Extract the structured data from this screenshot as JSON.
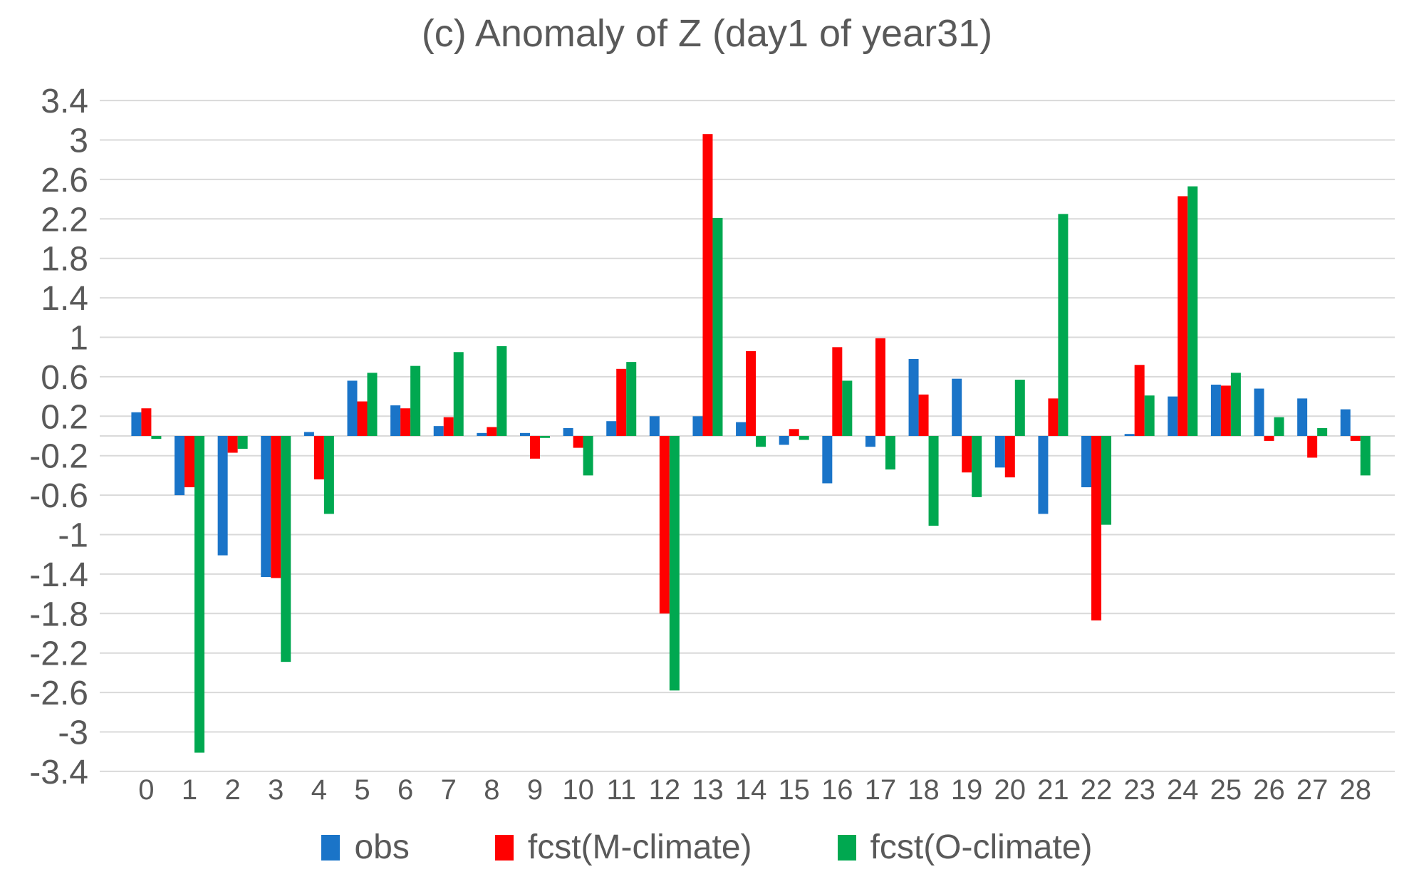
{
  "title": "(c) Anomaly of Z (day1 of year31)",
  "colors": {
    "obs": "#1A74C8",
    "fcst_m_climate": "#FF0000",
    "fcst_o_climate": "#00A850",
    "text": "#595959",
    "gridline": "#D9D9D9",
    "background": "#FFFFFF"
  },
  "y_axis": {
    "tick_labels": [
      "3.4",
      "3",
      "2.6",
      "2.2",
      "1.8",
      "1.4",
      "1",
      "0.6",
      "0.2",
      "-0.2",
      "-0.6",
      "-1",
      "-1.4",
      "-1.8",
      "-2.2",
      "-2.6",
      "-3",
      "-3.4"
    ],
    "max": 3.4,
    "min": -3.4,
    "step": 0.4
  },
  "legend": {
    "items": [
      {
        "label": "obs",
        "color": "#1A74C8"
      },
      {
        "label": "fcst(M-climate)",
        "color": "#FF0000"
      },
      {
        "label": "fcst(O-climate)",
        "color": "#00A850"
      }
    ]
  },
  "chart_data": {
    "type": "bar",
    "title": "(c) Anomaly of Z (day1 of year31)",
    "categories": [
      "0",
      "1",
      "2",
      "3",
      "4",
      "5",
      "6",
      "7",
      "8",
      "9",
      "10",
      "11",
      "12",
      "13",
      "14",
      "15",
      "16",
      "17",
      "18",
      "19",
      "20",
      "21",
      "22",
      "23",
      "24",
      "25",
      "26",
      "27",
      "28"
    ],
    "series": [
      {
        "name": "obs",
        "color": "#1A74C8",
        "values": [
          0.24,
          -0.6,
          -1.21,
          -1.43,
          0.04,
          0.56,
          0.31,
          0.1,
          0.03,
          0.03,
          0.08,
          0.15,
          0.2,
          0.2,
          0.14,
          -0.09,
          -0.48,
          -0.11,
          0.78,
          0.58,
          -0.32,
          -0.79,
          -0.52,
          0.02,
          0.4,
          0.52,
          0.48,
          0.38,
          0.27
        ]
      },
      {
        "name": "fcst(M-climate)",
        "color": "#FF0000",
        "values": [
          0.28,
          -0.52,
          -0.17,
          -1.44,
          -0.44,
          0.35,
          0.28,
          0.19,
          0.09,
          -0.23,
          -0.12,
          0.68,
          -1.8,
          3.06,
          0.86,
          0.07,
          0.9,
          0.99,
          0.42,
          -0.37,
          -0.42,
          0.38,
          -1.87,
          0.72,
          2.43,
          0.51,
          -0.05,
          -0.22,
          -0.05
        ]
      },
      {
        "name": "fcst(O-climate)",
        "color": "#00A850",
        "values": [
          -0.03,
          -3.21,
          -0.13,
          -2.29,
          -0.79,
          0.64,
          0.71,
          0.85,
          0.91,
          -0.02,
          -0.4,
          0.75,
          -2.58,
          2.21,
          -0.11,
          -0.04,
          0.56,
          -0.34,
          -0.91,
          -0.62,
          0.57,
          2.25,
          -0.9,
          0.41,
          2.53,
          0.64,
          0.19,
          0.08,
          -0.4
        ]
      }
    ],
    "xlabel": "",
    "ylabel": "",
    "ylim": [
      -3.4,
      3.4
    ],
    "ytick_step": 0.4,
    "grid": true,
    "legend_position": "bottom"
  }
}
